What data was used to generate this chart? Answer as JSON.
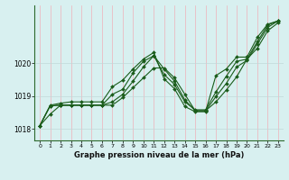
{
  "title": "",
  "xlabel": "Graphe pression niveau de la mer (hPa)",
  "background_color": "#d8f0f0",
  "line_color": "#1a5c1a",
  "grid_color_v": "#f0b0b8",
  "grid_color_h": "#c0d8d8",
  "xlim": [
    -0.5,
    23.5
  ],
  "ylim": [
    1017.65,
    1021.75
  ],
  "yticks": [
    1018,
    1019,
    1020
  ],
  "xticks": [
    0,
    1,
    2,
    3,
    4,
    5,
    6,
    7,
    8,
    9,
    10,
    11,
    12,
    13,
    14,
    15,
    16,
    17,
    18,
    19,
    20,
    21,
    22,
    23
  ],
  "series": [
    [
      1018.1,
      1018.45,
      1018.72,
      1018.72,
      1018.72,
      1018.72,
      1018.72,
      1019.05,
      1019.2,
      1019.7,
      1020.05,
      1020.22,
      1019.65,
      1019.35,
      1018.82,
      1018.58,
      1018.58,
      1019.12,
      1019.6,
      1020.05,
      1020.12,
      1020.65,
      1021.15,
      1021.28
    ],
    [
      1018.1,
      1018.7,
      1018.72,
      1018.72,
      1018.72,
      1018.72,
      1018.72,
      1018.72,
      1018.95,
      1019.25,
      1019.55,
      1019.85,
      1019.85,
      1019.55,
      1019.05,
      1018.55,
      1018.55,
      1018.82,
      1019.18,
      1019.58,
      1020.12,
      1020.45,
      1020.98,
      1021.22
    ],
    [
      1018.1,
      1018.7,
      1018.72,
      1018.72,
      1018.72,
      1018.72,
      1018.72,
      1018.82,
      1019.05,
      1019.45,
      1019.88,
      1020.22,
      1019.82,
      1019.45,
      1018.88,
      1018.55,
      1018.55,
      1018.98,
      1019.38,
      1019.88,
      1020.08,
      1020.58,
      1021.08,
      1021.28
    ],
    [
      1018.1,
      1018.72,
      1018.78,
      1018.82,
      1018.82,
      1018.82,
      1018.82,
      1019.28,
      1019.48,
      1019.82,
      1020.12,
      1020.32,
      1019.52,
      1019.22,
      1018.68,
      1018.52,
      1018.52,
      1019.62,
      1019.82,
      1020.18,
      1020.18,
      1020.78,
      1021.18,
      1021.28
    ]
  ]
}
